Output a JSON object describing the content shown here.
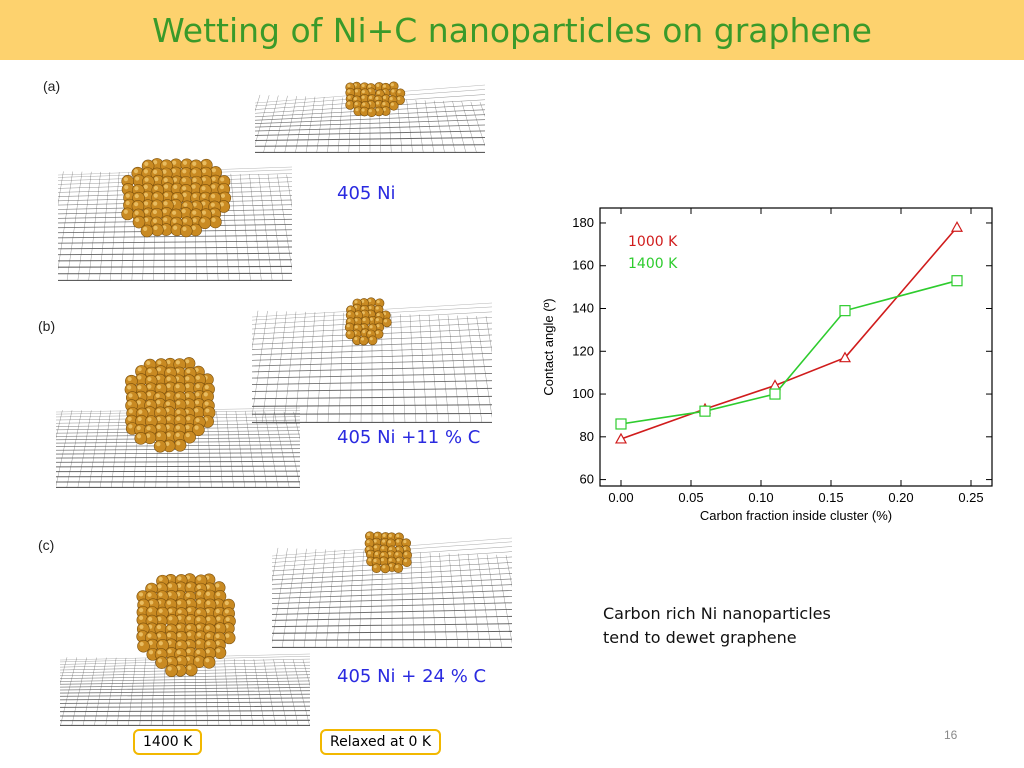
{
  "slide": {
    "title": "Wetting of Ni+C nanoparticles on graphene",
    "page_number": "16",
    "panels": [
      {
        "label": "(a)",
        "caption": "405 Ni"
      },
      {
        "label": "(b)",
        "caption": "405 Ni +11 % C"
      },
      {
        "label": "(c)",
        "caption": "405 Ni + 24 % C"
      }
    ],
    "note_lines": [
      "Carbon rich Ni nanoparticles",
      "tend to dewet graphene"
    ],
    "labels": {
      "left_box": "1400 K",
      "right_box": "Relaxed at 0 K"
    }
  },
  "chart_data": {
    "type": "line",
    "xlabel": "Carbon fraction inside cluster (%)",
    "ylabel": "Contact angle (º)",
    "xlim": [
      -0.015,
      0.265
    ],
    "ylim": [
      57,
      187
    ],
    "xticks": [
      0.0,
      0.05,
      0.1,
      0.15,
      0.2,
      0.25
    ],
    "xtick_labels": [
      "0.00",
      "0.05",
      "0.10",
      "0.15",
      "0.20",
      "0.25"
    ],
    "yticks": [
      60,
      80,
      100,
      120,
      140,
      160,
      180
    ],
    "ytick_labels": [
      "60",
      "80",
      "100",
      "120",
      "140",
      "160",
      "180"
    ],
    "legend_position": "top-left",
    "grid": false,
    "series": [
      {
        "name": "1000 K",
        "color": "#d01c1c",
        "marker": "triangle",
        "x": [
          0.0,
          0.06,
          0.11,
          0.16,
          0.24
        ],
        "y": [
          79,
          93,
          104,
          117,
          178
        ]
      },
      {
        "name": "1400 K",
        "color": "#2ecc2e",
        "marker": "square",
        "x": [
          0.0,
          0.06,
          0.11,
          0.16,
          0.24
        ],
        "y": [
          86,
          92,
          100,
          139,
          153
        ]
      }
    ]
  },
  "colors": {
    "header_bg": "#fdd26e",
    "title_text": "#3a9a2a",
    "caption_text": "#2a2ae0",
    "box_border": "#f2b800",
    "nanoparticle": "#c98a22",
    "graphene": "#555555"
  }
}
